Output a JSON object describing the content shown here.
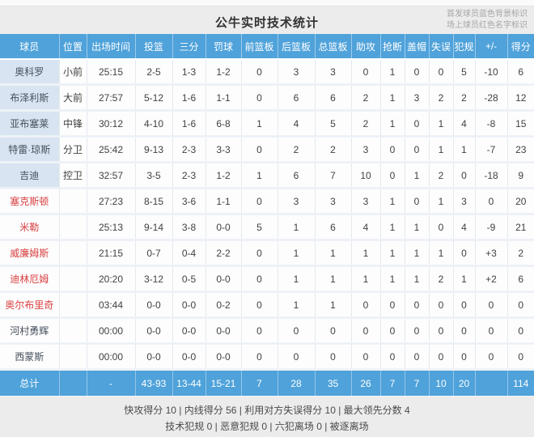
{
  "title": "公牛实时技术统计",
  "legend": {
    "line1": "首发球员蓝色背景标识",
    "line2": "场上球员红色名字标识"
  },
  "colors": {
    "header_blue": "#4fa2da",
    "starter_cell_bg": "#d8e4f1",
    "oncourt_name_red": "#d84040",
    "band_gray": "#ececec"
  },
  "table": {
    "headers": [
      "球员",
      "位置",
      "出场时间",
      "投篮",
      "三分",
      "罚球",
      "前篮板",
      "后篮板",
      "总篮板",
      "助攻",
      "抢断",
      "盖帽",
      "失误",
      "犯规",
      "+/-",
      "得分"
    ],
    "rows": [
      {
        "name": "奥科罗",
        "starter": true,
        "oncourt": false,
        "cells": [
          "小前",
          "25:15",
          "2-5",
          "1-3",
          "1-2",
          "0",
          "3",
          "3",
          "0",
          "1",
          "0",
          "0",
          "5",
          "-10",
          "6"
        ]
      },
      {
        "name": "布泽利斯",
        "starter": true,
        "oncourt": false,
        "cells": [
          "大前",
          "27:57",
          "5-12",
          "1-6",
          "1-1",
          "0",
          "6",
          "6",
          "2",
          "1",
          "3",
          "2",
          "2",
          "-28",
          "12"
        ]
      },
      {
        "name": "亚布塞莱",
        "starter": true,
        "oncourt": false,
        "cells": [
          "中锋",
          "30:12",
          "4-10",
          "1-6",
          "6-8",
          "1",
          "4",
          "5",
          "2",
          "1",
          "0",
          "1",
          "4",
          "-8",
          "15"
        ]
      },
      {
        "name": "特雷·琼斯",
        "starter": true,
        "oncourt": false,
        "cells": [
          "分卫",
          "25:42",
          "9-13",
          "2-3",
          "3-3",
          "0",
          "2",
          "2",
          "3",
          "0",
          "0",
          "1",
          "1",
          "-7",
          "23"
        ]
      },
      {
        "name": "吉迪",
        "starter": true,
        "oncourt": false,
        "cells": [
          "控卫",
          "32:57",
          "3-5",
          "2-3",
          "1-2",
          "1",
          "6",
          "7",
          "10",
          "0",
          "1",
          "2",
          "0",
          "-18",
          "9"
        ]
      },
      {
        "name": "塞克斯顿",
        "starter": false,
        "oncourt": true,
        "cells": [
          "",
          "27:23",
          "8-15",
          "3-6",
          "1-1",
          "0",
          "3",
          "3",
          "3",
          "1",
          "0",
          "1",
          "3",
          "0",
          "20"
        ]
      },
      {
        "name": "米勒",
        "starter": false,
        "oncourt": true,
        "cells": [
          "",
          "25:13",
          "9-14",
          "3-8",
          "0-0",
          "5",
          "1",
          "6",
          "4",
          "1",
          "1",
          "0",
          "4",
          "-9",
          "21"
        ]
      },
      {
        "name": "威廉姆斯",
        "starter": false,
        "oncourt": true,
        "cells": [
          "",
          "21:15",
          "0-7",
          "0-4",
          "2-2",
          "0",
          "1",
          "1",
          "1",
          "1",
          "1",
          "1",
          "0",
          "+3",
          "2"
        ]
      },
      {
        "name": "迪林厄姆",
        "starter": false,
        "oncourt": true,
        "cells": [
          "",
          "20:20",
          "3-12",
          "0-5",
          "0-0",
          "0",
          "1",
          "1",
          "1",
          "1",
          "1",
          "2",
          "1",
          "+2",
          "6"
        ]
      },
      {
        "name": "奥尔布里奇",
        "starter": false,
        "oncourt": true,
        "cells": [
          "",
          "03:44",
          "0-0",
          "0-0",
          "0-2",
          "0",
          "1",
          "1",
          "0",
          "0",
          "0",
          "0",
          "0",
          "0",
          "0"
        ]
      },
      {
        "name": "河村勇辉",
        "starter": false,
        "oncourt": false,
        "cells": [
          "",
          "00:00",
          "0-0",
          "0-0",
          "0-0",
          "0",
          "0",
          "0",
          "0",
          "0",
          "0",
          "0",
          "0",
          "0",
          "0"
        ]
      },
      {
        "name": "西蒙斯",
        "starter": false,
        "oncourt": false,
        "cells": [
          "",
          "00:00",
          "0-0",
          "0-0",
          "0-0",
          "0",
          "0",
          "0",
          "0",
          "0",
          "0",
          "0",
          "0",
          "0",
          "0"
        ]
      }
    ],
    "total": {
      "label": "总计",
      "cells": [
        "",
        "-",
        "43-93",
        "13-44",
        "15-21",
        "7",
        "28",
        "35",
        "26",
        "7",
        "7",
        "10",
        "20",
        "",
        "114"
      ]
    }
  },
  "footer": {
    "line1": "快攻得分 10 | 内线得分 56 | 利用对方失误得分 10 | 最大领先分数 4",
    "line2": "技术犯规 0 | 恶意犯规 0 | 六犯离场 0 | 被逐离场"
  }
}
